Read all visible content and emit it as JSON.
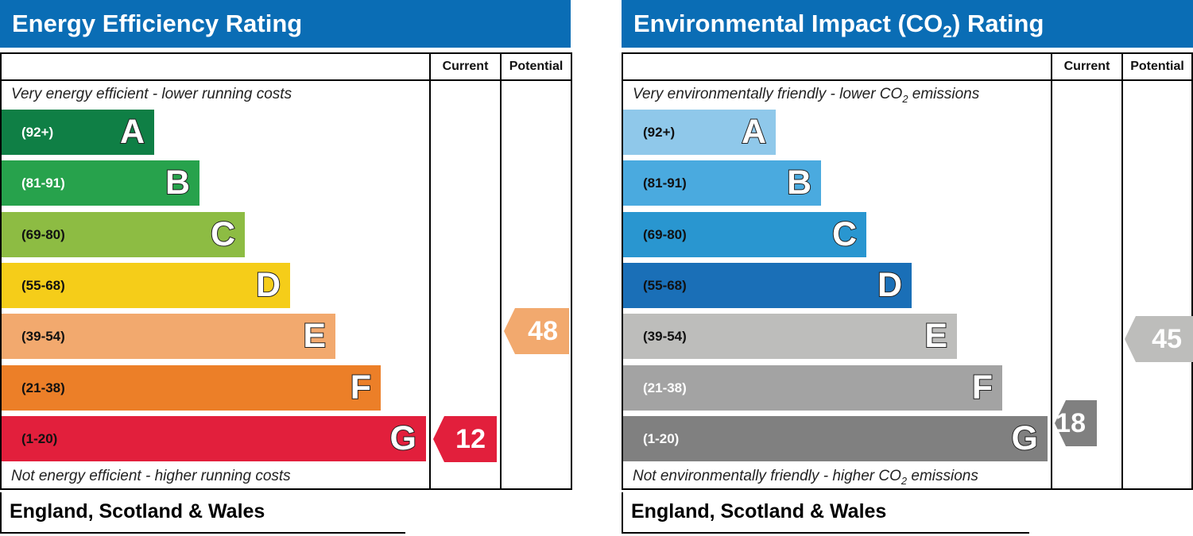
{
  "chart_data": [
    {
      "type": "bar",
      "title": "Energy Efficiency Rating",
      "columns": [
        "Current",
        "Potential"
      ],
      "top_caption": "Very energy efficient - lower running costs",
      "bottom_caption": "Not energy efficient - higher running costs",
      "footer": "England, Scotland & Wales",
      "bands": [
        {
          "letter": "A",
          "range": "(92+)",
          "color": "#0f7f45",
          "text_color": "#ffffff"
        },
        {
          "letter": "B",
          "range": "(81-91)",
          "color": "#27a24c",
          "text_color": "#ffffff"
        },
        {
          "letter": "C",
          "range": "(69-80)",
          "color": "#8dbc43",
          "text_color": "#111111"
        },
        {
          "letter": "D",
          "range": "(55-68)",
          "color": "#f5cd19",
          "text_color": "#111111"
        },
        {
          "letter": "E",
          "range": "(39-54)",
          "color": "#f2a96e",
          "text_color": "#111111"
        },
        {
          "letter": "F",
          "range": "(21-38)",
          "color": "#ec7f28",
          "text_color": "#111111"
        },
        {
          "letter": "G",
          "range": "(1-20)",
          "color": "#e21f3c",
          "text_color": "#111111"
        }
      ],
      "current": {
        "value": "12",
        "band": "G",
        "color": "#e21f3c"
      },
      "potential": {
        "value": "48",
        "band": "E",
        "color": "#f2a96e"
      }
    },
    {
      "type": "bar",
      "title": "Environmental Impact (CO2) Rating",
      "columns": [
        "Current",
        "Potential"
      ],
      "top_caption": "Very environmentally friendly - lower CO2 emissions",
      "bottom_caption": "Not environmentally friendly - higher CO2 emissions",
      "footer": "England, Scotland & Wales",
      "bands": [
        {
          "letter": "A",
          "range": "(92+)",
          "color": "#8fc8ea",
          "text_color": "#111111"
        },
        {
          "letter": "B",
          "range": "(81-91)",
          "color": "#4aaadf",
          "text_color": "#111111"
        },
        {
          "letter": "C",
          "range": "(69-80)",
          "color": "#2996d0",
          "text_color": "#111111"
        },
        {
          "letter": "D",
          "range": "(55-68)",
          "color": "#1a6fb7",
          "text_color": "#111111"
        },
        {
          "letter": "E",
          "range": "(39-54)",
          "color": "#bdbdbb",
          "text_color": "#111111"
        },
        {
          "letter": "F",
          "range": "(21-38)",
          "color": "#a3a3a3",
          "text_color": "#ffffff"
        },
        {
          "letter": "G",
          "range": "(1-20)",
          "color": "#808080",
          "text_color": "#ffffff"
        }
      ],
      "current": {
        "value": "18",
        "band": "G",
        "color": "#808080"
      },
      "potential": {
        "value": "45",
        "band": "E",
        "color": "#bdbdbb"
      }
    }
  ]
}
